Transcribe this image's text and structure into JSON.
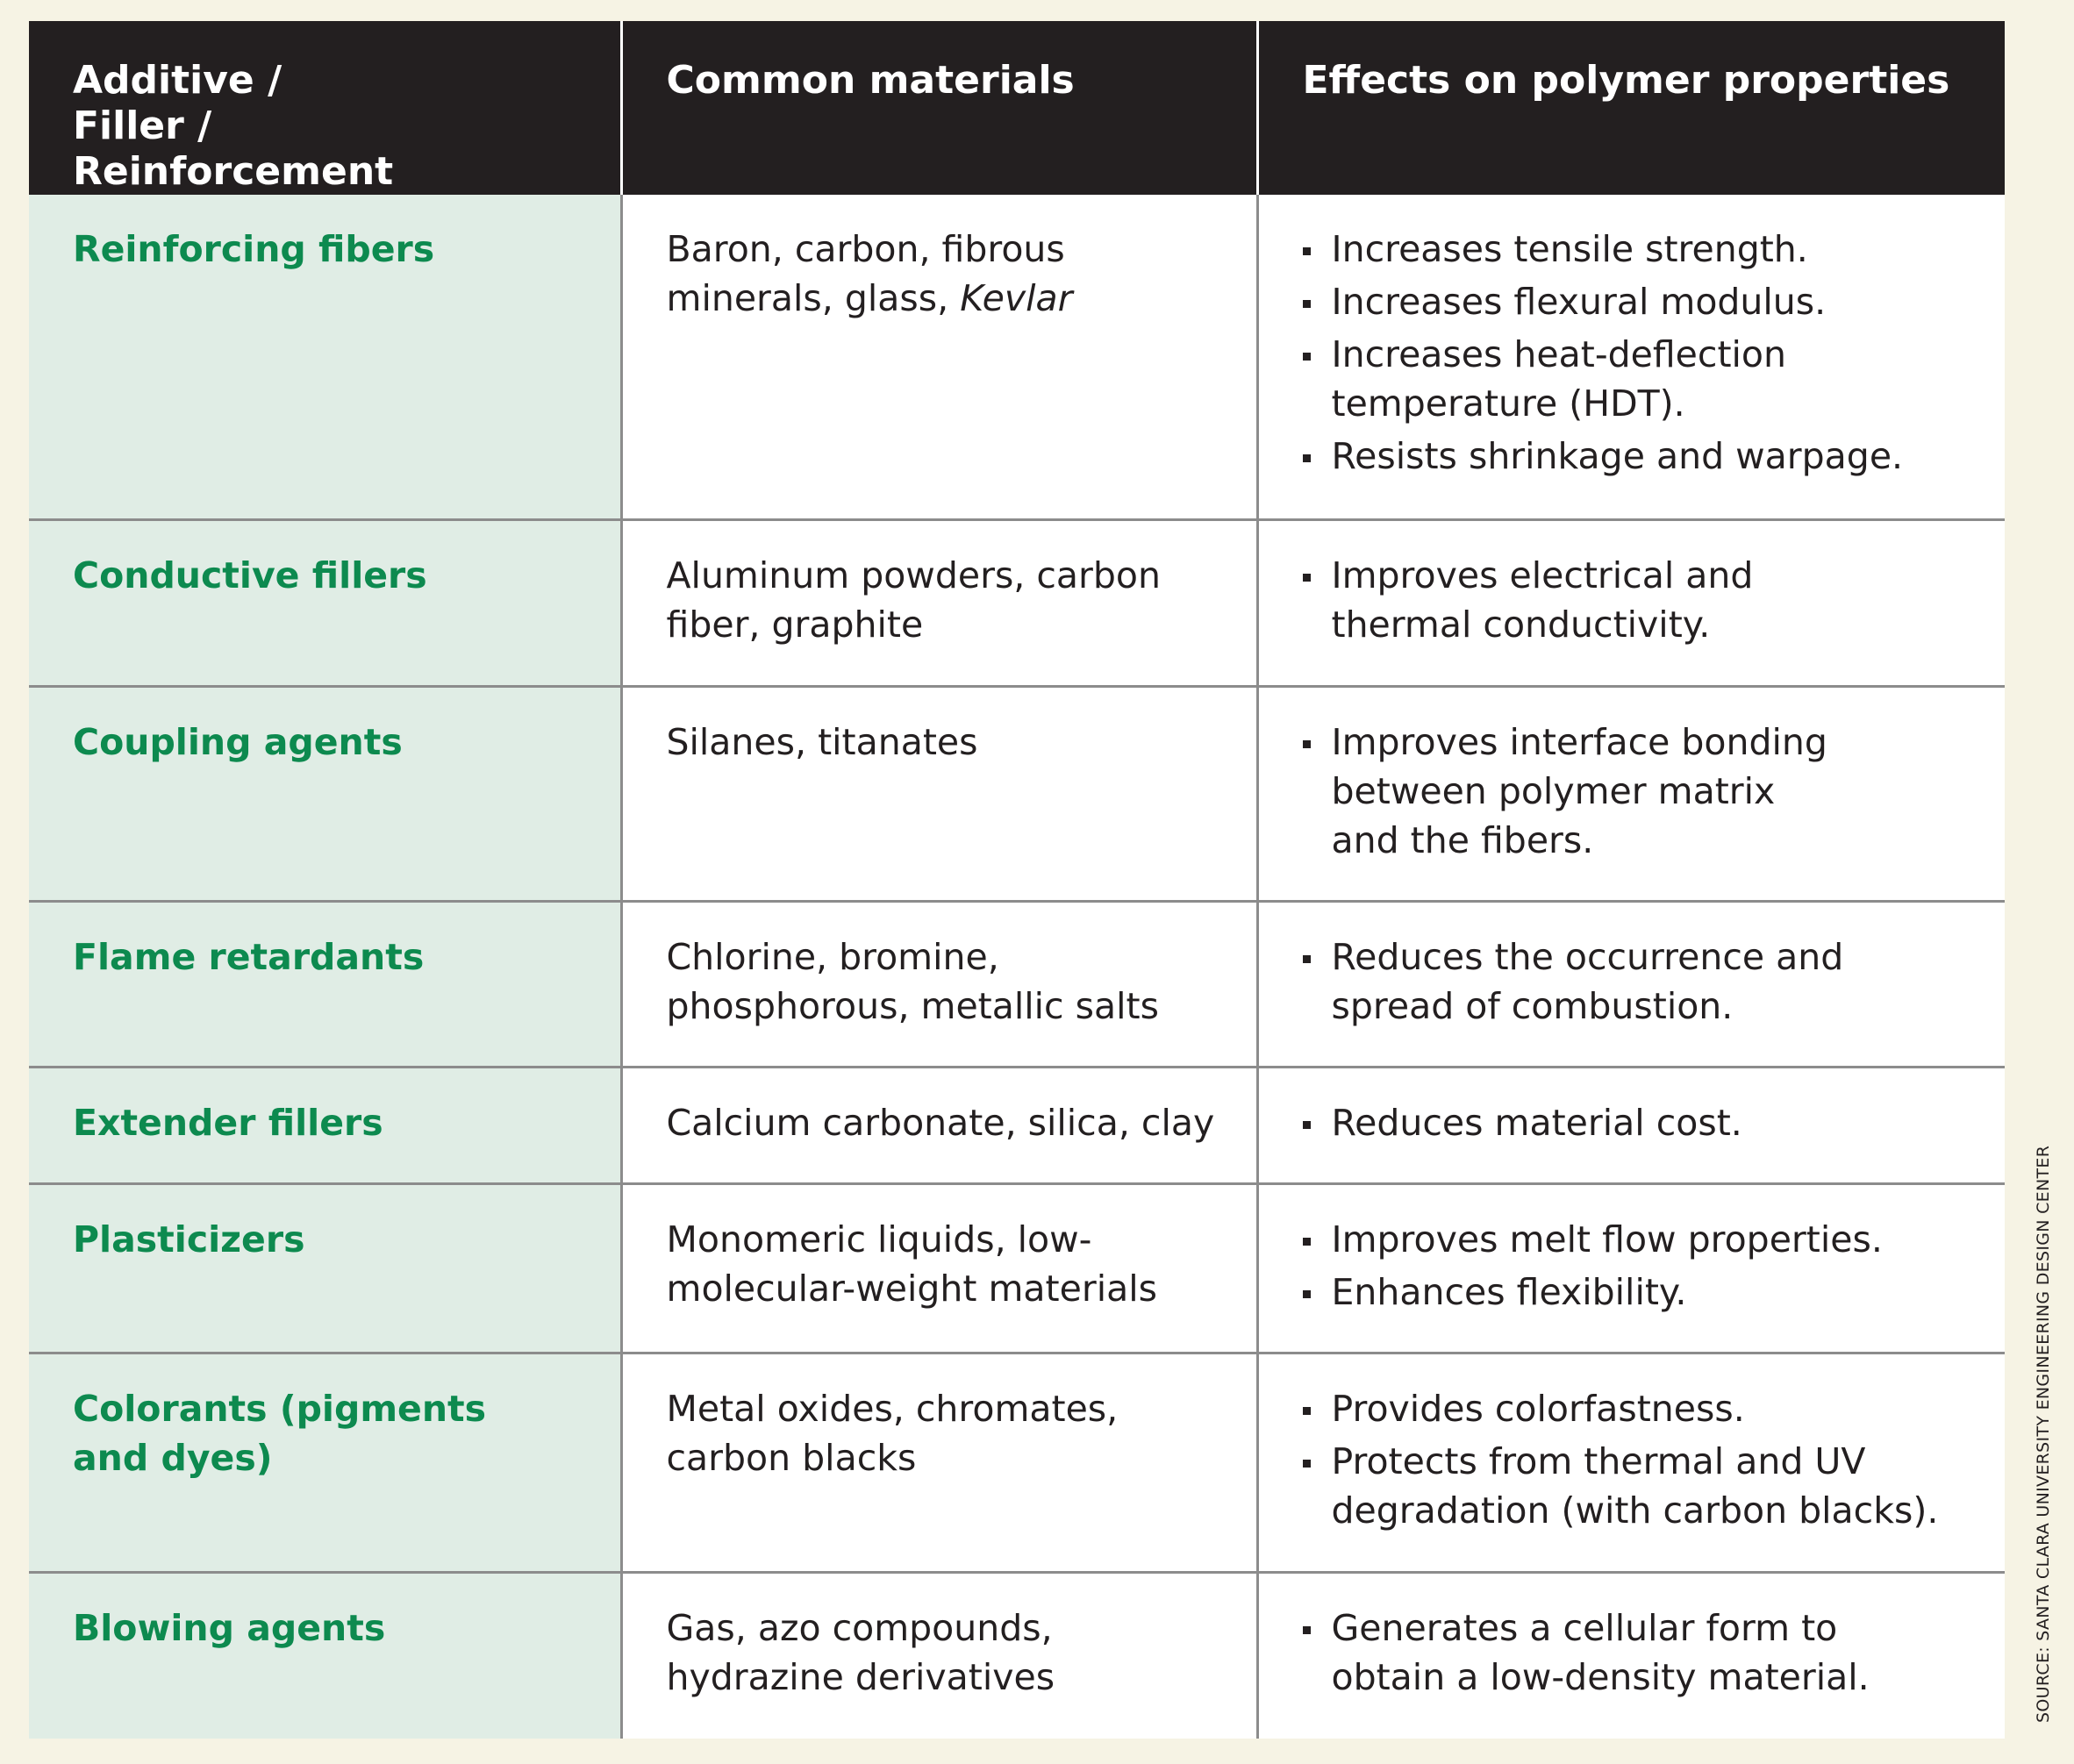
{
  "headers": {
    "col1": "Additive / Filler / Reinforcement",
    "col2": "Common materials",
    "col3": "Effects on polymer properties"
  },
  "rows": [
    {
      "category": "Reinforcing fibers",
      "materials": "Baron, carbon, fibrous minerals, glass,",
      "materials_italic": "Kevlar",
      "effects": [
        "Increases tensile strength.",
        "Increases  flexural modulus.",
        "Increases heat-deflection temperature (HDT).",
        "Resists shrinkage and warpage."
      ]
    },
    {
      "category": "Conductive fillers",
      "materials": "Aluminum powders, carbon fiber, graphite",
      "effects": [
        "Improves electrical and thermal conductivity."
      ]
    },
    {
      "category": "Coupling agents",
      "materials": "Silanes, titanates",
      "effects": [
        "Improves interface bonding between polymer matrix and the fibers."
      ]
    },
    {
      "category": "Flame retardants",
      "materials": "Chlorine, bromine, phosphorous, metallic salts",
      "effects": [
        "Reduces the occurrence and spread of combustion."
      ]
    },
    {
      "category": "Extender fillers",
      "materials": "Calcium carbonate, silica, clay",
      "effects": [
        "Reduces material cost."
      ]
    },
    {
      "category": "Plasticizers",
      "materials": "Monomeric liquids, low-molecular-weight materials",
      "effects": [
        "Improves melt flow properties.",
        "Enhances flexibility."
      ]
    },
    {
      "category": "Colorants (pigments and dyes)",
      "materials": "Metal oxides, chromates, carbon blacks",
      "effects": [
        "Provides colorfastness.",
        "Protects from thermal and UV degradation (with carbon blacks)."
      ]
    },
    {
      "category": "Blowing agents",
      "materials": "Gas, azo compounds, hydrazine derivatives",
      "effects": [
        "Generates a cellular form to obtain a low-density material."
      ]
    }
  ],
  "source": "SOURCE: SANTA CLARA UNIVERSITY ENGINEERING DESIGN CENTER"
}
